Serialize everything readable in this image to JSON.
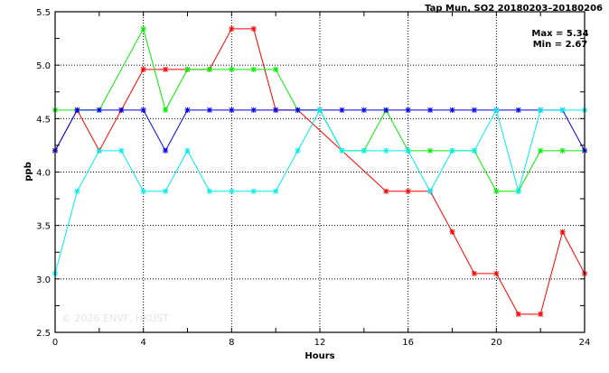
{
  "chart_data": {
    "type": "line",
    "title": "Tap Mun, SO2 20180203–20180206",
    "xlabel": "Hours",
    "ylabel": "ppb",
    "xlim": [
      0,
      24
    ],
    "ylim": [
      2.5,
      5.5
    ],
    "xticks": [
      0,
      4,
      8,
      12,
      16,
      20,
      24
    ],
    "yticks": [
      2.5,
      3.0,
      3.5,
      4.0,
      4.5,
      5.0,
      5.5
    ],
    "grid": true,
    "annotations": [
      "Max = 5.34",
      "Min = 2.67"
    ],
    "watermark": "© 2026 ENVF, HKUST",
    "x": [
      0,
      1,
      2,
      3,
      4,
      5,
      6,
      7,
      8,
      9,
      10,
      11,
      12,
      13,
      14,
      15,
      16,
      17,
      18,
      19,
      20,
      21,
      22,
      23,
      24
    ],
    "series": [
      {
        "color": "#ff0000",
        "values": [
          4.2,
          4.58,
          4.2,
          4.58,
          4.96,
          4.96,
          4.96,
          4.96,
          5.34,
          5.34,
          4.58,
          4.58,
          null,
          null,
          null,
          3.82,
          3.82,
          3.82,
          3.44,
          3.05,
          3.05,
          2.67,
          2.67,
          3.44,
          3.05
        ]
      },
      {
        "color": "#00ee00",
        "values": [
          4.58,
          4.58,
          4.58,
          null,
          5.34,
          4.58,
          4.96,
          4.96,
          4.96,
          4.96,
          4.96,
          4.58,
          4.58,
          4.2,
          4.2,
          4.58,
          4.2,
          4.2,
          4.2,
          4.2,
          3.82,
          3.82,
          4.2,
          4.2,
          4.2
        ]
      },
      {
        "color": "#0000ee",
        "values": [
          4.2,
          4.58,
          4.58,
          4.58,
          4.58,
          4.2,
          4.58,
          4.58,
          4.58,
          4.58,
          4.58,
          4.58,
          4.58,
          4.58,
          4.58,
          4.58,
          4.58,
          4.58,
          4.58,
          4.58,
          4.58,
          4.58,
          4.58,
          4.58,
          4.2
        ]
      },
      {
        "color": "#00eeee",
        "values": [
          3.05,
          3.82,
          4.2,
          4.2,
          3.82,
          3.82,
          4.2,
          3.82,
          3.82,
          3.82,
          3.82,
          4.2,
          4.58,
          4.2,
          4.2,
          4.2,
          4.2,
          3.82,
          4.2,
          4.2,
          4.58,
          3.82,
          4.58,
          4.58,
          4.58
        ]
      }
    ]
  }
}
